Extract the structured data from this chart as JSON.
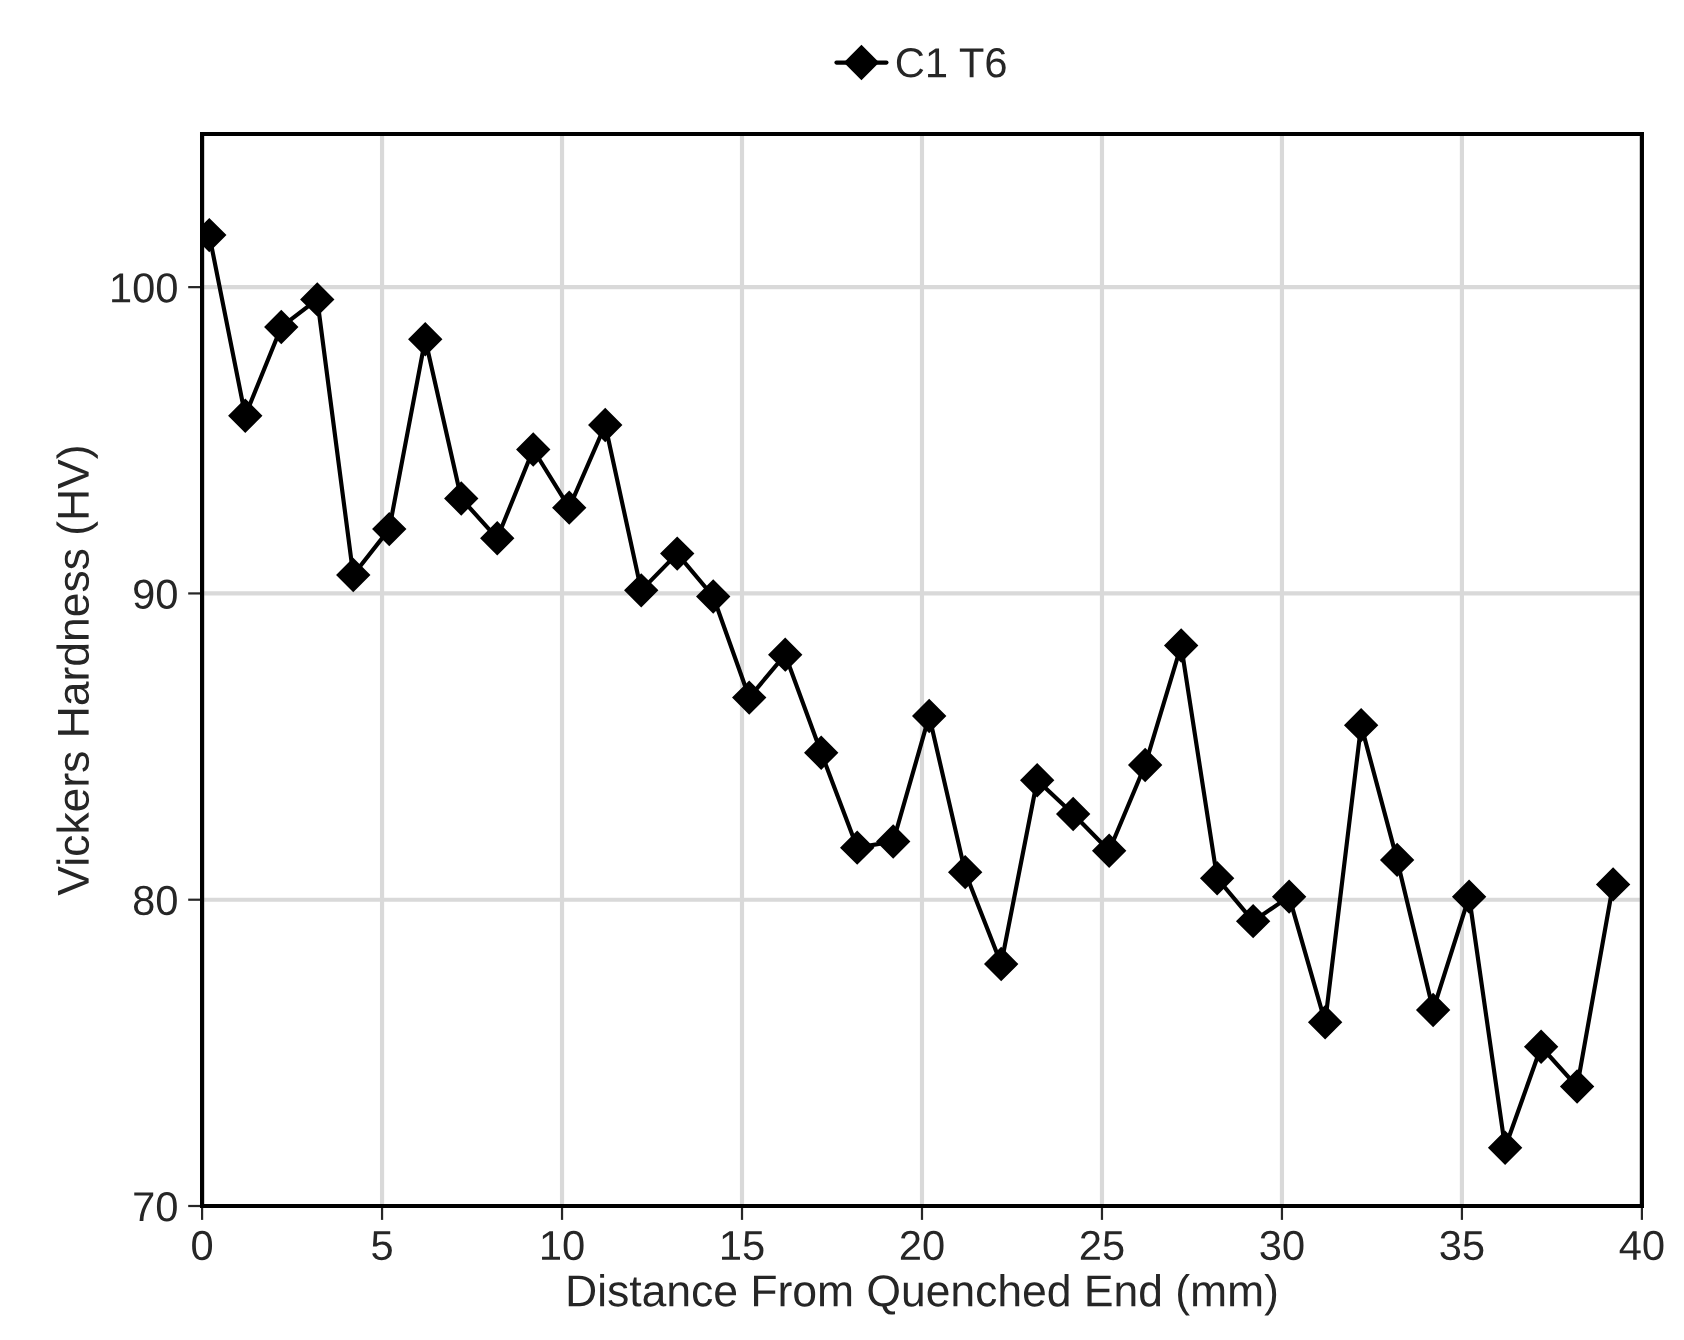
{
  "chart_data": {
    "type": "line",
    "xlabel": "Distance From Quenched End (mm)",
    "ylabel": "Vickers Hardness (HV)",
    "x": [
      0.2,
      1.2,
      2.2,
      3.2,
      4.2,
      5.2,
      6.2,
      7.2,
      8.2,
      9.2,
      10.2,
      11.2,
      12.2,
      13.2,
      14.2,
      15.2,
      16.2,
      17.2,
      18.2,
      19.2,
      20.2,
      21.2,
      22.2,
      23.2,
      24.2,
      25.2,
      26.2,
      27.2,
      28.2,
      29.2,
      30.2,
      31.2,
      32.2,
      33.2,
      34.2,
      35.2,
      36.2,
      37.2,
      38.2,
      39.2
    ],
    "series": [
      {
        "name": "C1 T6",
        "color": "#000000",
        "values": [
          101.7,
          95.8,
          98.7,
          99.6,
          90.6,
          92.1,
          98.3,
          93.1,
          91.8,
          94.7,
          92.8,
          95.5,
          90.1,
          91.3,
          89.9,
          86.6,
          88.0,
          84.8,
          81.7,
          81.9,
          86.0,
          80.9,
          77.9,
          83.9,
          82.8,
          81.6,
          84.4,
          88.3,
          80.7,
          79.3,
          80.1,
          76.0,
          85.7,
          81.3,
          76.4,
          80.1,
          71.9,
          75.2,
          73.9,
          80.5
        ]
      }
    ],
    "xlim": [
      0,
      40
    ],
    "xticks": [
      0,
      5,
      10,
      15,
      20,
      25,
      30,
      35,
      40
    ],
    "ylim": [
      70,
      105
    ],
    "yticks": [
      70,
      80,
      90,
      100
    ],
    "grid": true,
    "legend": "top",
    "marker": "diamond",
    "line_style": "solid"
  }
}
